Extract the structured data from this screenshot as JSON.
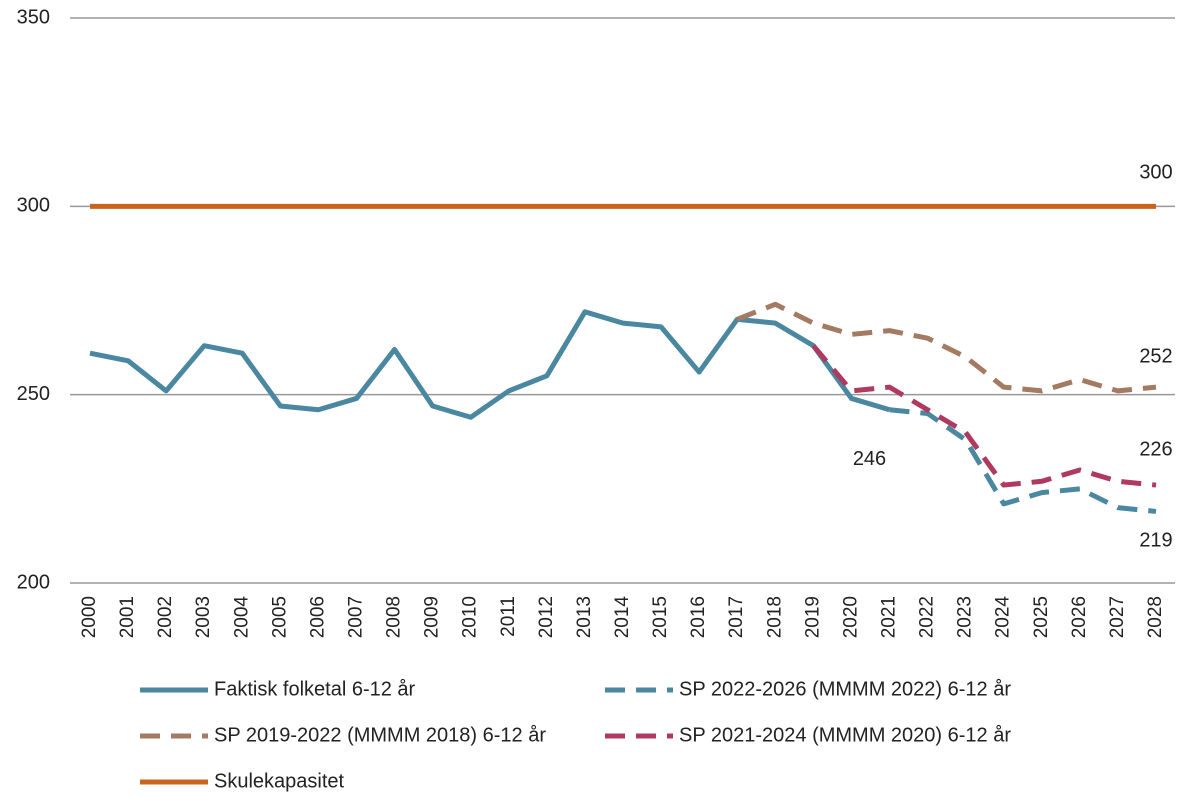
{
  "chart_data": {
    "type": "line",
    "categories": [
      "2000",
      "2001",
      "2002",
      "2003",
      "2004",
      "2005",
      "2006",
      "2007",
      "2008",
      "2009",
      "2010",
      "2011",
      "2012",
      "2013",
      "2014",
      "2015",
      "2016",
      "2017",
      "2018",
      "2019",
      "2020",
      "2021",
      "2022",
      "2023",
      "2024",
      "2025",
      "2026",
      "2027",
      "2028"
    ],
    "ylim": [
      200,
      350
    ],
    "yticks": [
      200,
      250,
      300,
      350
    ],
    "grid": true,
    "series": [
      {
        "name": "Faktisk folketal 6-12 år",
        "color": "#4a87a0",
        "dashed": false,
        "values": [
          261,
          259,
          251,
          263,
          261,
          247,
          246,
          249,
          262,
          247,
          244,
          251,
          255,
          272,
          269,
          268,
          256,
          270,
          269,
          263,
          249,
          246,
          null,
          null,
          null,
          null,
          null,
          null,
          null
        ],
        "data_labels": [
          21
        ]
      },
      {
        "name": "SP 2022-2026 (MMMM 2022) 6-12 år",
        "color": "#4a87a0",
        "dashed": true,
        "values": [
          null,
          null,
          null,
          null,
          null,
          null,
          null,
          null,
          null,
          null,
          null,
          null,
          null,
          null,
          null,
          null,
          null,
          null,
          null,
          null,
          null,
          246,
          245,
          238,
          221,
          224,
          225,
          220,
          219
        ],
        "data_labels": [
          28
        ]
      },
      {
        "name": "SP 2019-2022 (MMMM 2018) 6-12 år",
        "color": "#a47a62",
        "dashed": true,
        "values": [
          null,
          null,
          null,
          null,
          null,
          null,
          null,
          null,
          null,
          null,
          null,
          null,
          null,
          null,
          null,
          null,
          null,
          270,
          274,
          269,
          266,
          267,
          265,
          260,
          252,
          251,
          254,
          251,
          252
        ],
        "data_labels": [
          28
        ]
      },
      {
        "name": "SP 2021-2024 (MMMM 2020) 6-12 år",
        "color": "#b0395f",
        "dashed": true,
        "values": [
          null,
          null,
          null,
          null,
          null,
          null,
          null,
          null,
          null,
          null,
          null,
          null,
          null,
          null,
          null,
          null,
          null,
          null,
          null,
          263,
          251,
          252,
          246,
          240,
          226,
          227,
          230,
          227,
          226
        ],
        "data_labels": [
          28
        ]
      },
      {
        "name": "Skulekapasitet",
        "color": "#c9641f",
        "dashed": false,
        "values": [
          300,
          300,
          300,
          300,
          300,
          300,
          300,
          300,
          300,
          300,
          300,
          300,
          300,
          300,
          300,
          300,
          300,
          300,
          300,
          300,
          300,
          300,
          300,
          300,
          300,
          300,
          300,
          300,
          300
        ],
        "data_labels": [
          28
        ]
      }
    ]
  }
}
